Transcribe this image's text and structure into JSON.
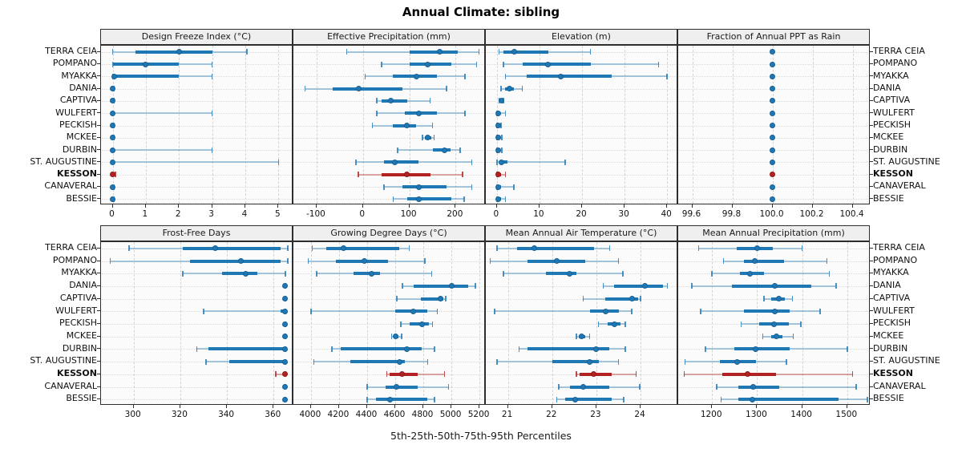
{
  "title": "Annual Climate: sibling",
  "caption": "5th-25th-50th-75th-95th Percentiles",
  "colors": {
    "series": "#1f77b4",
    "series_fade": "rgba(31,119,180,0.38)",
    "series_cap": "rgba(31,119,180,0.8)",
    "highlight": "#b22222",
    "highlight_fade": "rgba(178,34,34,0.38)",
    "highlight_cap": "rgba(178,34,34,0.8)",
    "panel_header_bg": "#efefef",
    "panel_bg": "#fbfbfb",
    "grid": "#d4d4d4",
    "border": "#2e2e2e"
  },
  "chart_data": {
    "type": "percentile-interval-dotplot",
    "percentiles": [
      5,
      25,
      50,
      75,
      95
    ],
    "stations": [
      "TERRA CEIA",
      "POMPANO",
      "MYAKKA",
      "DANIA",
      "CAPTIVA",
      "WULFERT",
      "PECKISH",
      "MCKEE",
      "DURBIN",
      "ST. AUGUSTINE",
      "KESSON",
      "CANAVERAL",
      "BESSIE"
    ],
    "highlight_station": "KESSON",
    "panels": [
      {
        "title": "Design Freeze Index (°C)",
        "grid_row": 0,
        "xlim": [
          -0.35,
          5.45
        ],
        "ticks": [
          0,
          1,
          2,
          3,
          4,
          5
        ],
        "tick_labels": [
          "0",
          "1",
          "2",
          "3",
          "4",
          "5"
        ],
        "values": [
          [
            0,
            0.7,
            2,
            3,
            4.05
          ],
          [
            0,
            0.02,
            1,
            2,
            3
          ],
          [
            0,
            0.02,
            0.05,
            2,
            3
          ],
          [
            0,
            0,
            0,
            0,
            0.05
          ],
          [
            0,
            0,
            0,
            0,
            0.05
          ],
          [
            0,
            0,
            0,
            0,
            3
          ],
          [
            0,
            0,
            0,
            0,
            0.05
          ],
          [
            0,
            0,
            0,
            0,
            0.05
          ],
          [
            0,
            0,
            0,
            0,
            3
          ],
          [
            0,
            0,
            0,
            0,
            5
          ],
          [
            0,
            0,
            0,
            0,
            0.08
          ],
          [
            0,
            0,
            0,
            0,
            0.05
          ],
          [
            0,
            0,
            0,
            0,
            0.05
          ]
        ]
      },
      {
        "title": "Effective Precipitation (mm)",
        "grid_row": 0,
        "xlim": [
          -150,
          265
        ],
        "ticks": [
          -100,
          0,
          100,
          200
        ],
        "tick_labels": [
          "-100",
          "0",
          "100",
          "200"
        ],
        "values": [
          [
            -35,
            100,
            165,
            205,
            250
          ],
          [
            40,
            100,
            140,
            190,
            245
          ],
          [
            5,
            65,
            115,
            160,
            220
          ],
          [
            -125,
            -65,
            -10,
            85,
            180
          ],
          [
            30,
            40,
            60,
            95,
            145
          ],
          [
            30,
            90,
            120,
            160,
            220
          ],
          [
            20,
            65,
            95,
            115,
            150
          ],
          [
            128,
            133,
            140,
            148,
            153
          ],
          [
            75,
            150,
            175,
            188,
            210
          ],
          [
            -15,
            45,
            68,
            120,
            235
          ],
          [
            -10,
            40,
            95,
            145,
            215
          ],
          [
            45,
            85,
            120,
            180,
            235
          ],
          [
            65,
            95,
            120,
            190,
            218
          ]
        ]
      },
      {
        "title": "Elevation (m)",
        "grid_row": 0,
        "xlim": [
          -2.6,
          42.6
        ],
        "ticks": [
          0,
          10,
          20,
          30,
          40
        ],
        "tick_labels": [
          "0",
          "10",
          "20",
          "30",
          "40"
        ],
        "values": [
          [
            0.5,
            1.5,
            4,
            12,
            22
          ],
          [
            1.5,
            6,
            12,
            22,
            38
          ],
          [
            2,
            7,
            15,
            27,
            40
          ],
          [
            1,
            2,
            3,
            4,
            6
          ],
          [
            0.5,
            0.8,
            1,
            1.2,
            1.5
          ],
          [
            0,
            0.1,
            0.3,
            0.8,
            2
          ],
          [
            0,
            0.1,
            0.3,
            0.6,
            1
          ],
          [
            0,
            0.1,
            0.3,
            0.6,
            1.2
          ],
          [
            0,
            0.1,
            0.3,
            0.6,
            1.2
          ],
          [
            0,
            0.5,
            1,
            2.5,
            16
          ],
          [
            0,
            0.1,
            0.3,
            1,
            2
          ],
          [
            0,
            0.1,
            0.3,
            1,
            4
          ],
          [
            0,
            0.1,
            0.3,
            1,
            2
          ]
        ]
      },
      {
        "title": "Fraction of Annual PPT as Rain",
        "grid_row": 0,
        "xlim": [
          99.53,
          100.49
        ],
        "ticks": [
          99.6,
          99.8,
          100.0,
          100.2,
          100.4
        ],
        "tick_labels": [
          "99.6",
          "99.8",
          "100.0",
          "100.2",
          "100.4"
        ],
        "values": [
          [
            100,
            100,
            100,
            100,
            100
          ],
          [
            100,
            100,
            100,
            100,
            100
          ],
          [
            100,
            100,
            100,
            100,
            100
          ],
          [
            100,
            100,
            100,
            100,
            100
          ],
          [
            100,
            100,
            100,
            100,
            100
          ],
          [
            100,
            100,
            100,
            100,
            100
          ],
          [
            100,
            100,
            100,
            100,
            100
          ],
          [
            100,
            100,
            100,
            100,
            100
          ],
          [
            100,
            100,
            100,
            100,
            100
          ],
          [
            100,
            100,
            100,
            100,
            100
          ],
          [
            100,
            100,
            100,
            100,
            100
          ],
          [
            100,
            100,
            100,
            100,
            100
          ],
          [
            100,
            100,
            100,
            100,
            100
          ]
        ]
      },
      {
        "title": "Frost-Free Days",
        "grid_row": 1,
        "xlim": [
          286,
          368.5
        ],
        "ticks": [
          300,
          320,
          340,
          360
        ],
        "tick_labels": [
          "300",
          "320",
          "340",
          "360"
        ],
        "values": [
          [
            298,
            321,
            335,
            363,
            366
          ],
          [
            290,
            324,
            346,
            363,
            366
          ],
          [
            321,
            338,
            348,
            353,
            365
          ],
          [
            365,
            365,
            365,
            365,
            365
          ],
          [
            365,
            365,
            365,
            365,
            365
          ],
          [
            330,
            363,
            365,
            365,
            365
          ],
          [
            365,
            365,
            365,
            365,
            365
          ],
          [
            365,
            365,
            365,
            365,
            365
          ],
          [
            327,
            332,
            365,
            365,
            365
          ],
          [
            331,
            341,
            365,
            365,
            365
          ],
          [
            361,
            364,
            365,
            365,
            365
          ],
          [
            365,
            365,
            365,
            365,
            365
          ],
          [
            365,
            365,
            365,
            365,
            365
          ]
        ]
      },
      {
        "title": "Growing Degree Days (°C)",
        "grid_row": 1,
        "xlim": [
          3875,
          5245
        ],
        "ticks": [
          4000,
          4200,
          4400,
          4600,
          4800,
          5000,
          5200
        ],
        "tick_labels": [
          "4000",
          "4200",
          "4400",
          "4600",
          "4800",
          "5000",
          "5200"
        ],
        "values": [
          [
            4010,
            4110,
            4230,
            4630,
            4700
          ],
          [
            3980,
            4180,
            4380,
            4550,
            4810
          ],
          [
            4040,
            4300,
            4430,
            4490,
            4860
          ],
          [
            4650,
            4730,
            5000,
            5120,
            5170
          ],
          [
            4610,
            4780,
            4920,
            4945,
            4960
          ],
          [
            4000,
            4600,
            4730,
            4830,
            4900
          ],
          [
            4640,
            4700,
            4790,
            4840,
            4865
          ],
          [
            4575,
            4590,
            4600,
            4625,
            4645
          ],
          [
            4150,
            4210,
            4680,
            4790,
            4880
          ],
          [
            4020,
            4280,
            4630,
            4670,
            4830
          ],
          [
            4540,
            4560,
            4650,
            4760,
            4950
          ],
          [
            4400,
            4530,
            4610,
            4760,
            4980
          ],
          [
            4400,
            4460,
            4560,
            4830,
            4880
          ]
        ]
      },
      {
        "title": "Mean Annual Air Temperature (°C)",
        "grid_row": 1,
        "xlim": [
          20.5,
          24.85
        ],
        "ticks": [
          21,
          22,
          23,
          24
        ],
        "tick_labels": [
          "21",
          "22",
          "23",
          "24"
        ],
        "values": [
          [
            20.75,
            21.2,
            21.6,
            22.95,
            23.3
          ],
          [
            20.6,
            21.45,
            22.1,
            22.75,
            23.5
          ],
          [
            20.9,
            21.85,
            22.4,
            22.55,
            23.6
          ],
          [
            23.15,
            23.4,
            24.1,
            24.5,
            24.6
          ],
          [
            22.7,
            23.2,
            23.8,
            23.95,
            24.0
          ],
          [
            20.7,
            22.85,
            23.2,
            23.5,
            23.8
          ],
          [
            23.05,
            23.25,
            23.4,
            23.55,
            23.65
          ],
          [
            22.55,
            22.6,
            22.67,
            22.75,
            22.85
          ],
          [
            21.25,
            21.45,
            23.0,
            23.3,
            23.65
          ],
          [
            20.75,
            22.0,
            22.85,
            23.05,
            23.5
          ],
          [
            22.55,
            22.62,
            22.93,
            23.35,
            23.9
          ],
          [
            22.15,
            22.4,
            22.7,
            23.3,
            23.98
          ],
          [
            22.1,
            22.3,
            22.52,
            23.35,
            23.62
          ]
        ]
      },
      {
        "title": "Mean Annual Precipitation (mm)",
        "grid_row": 1,
        "xlim": [
          1125,
          1552
        ],
        "ticks": [
          1200,
          1300,
          1400,
          1500
        ],
        "tick_labels": [
          "1200",
          "1300",
          "1400",
          "1500"
        ],
        "values": [
          [
            1170,
            1255,
            1300,
            1335,
            1400
          ],
          [
            1225,
            1270,
            1295,
            1360,
            1455
          ],
          [
            1200,
            1262,
            1285,
            1315,
            1460
          ],
          [
            1155,
            1245,
            1340,
            1420,
            1475
          ],
          [
            1315,
            1332,
            1348,
            1362,
            1378
          ],
          [
            1175,
            1270,
            1340,
            1372,
            1440
          ],
          [
            1265,
            1305,
            1337,
            1370,
            1397
          ],
          [
            1313,
            1331,
            1342,
            1356,
            1380
          ],
          [
            1185,
            1250,
            1297,
            1372,
            1500
          ],
          [
            1140,
            1218,
            1255,
            1297,
            1365
          ],
          [
            1138,
            1222,
            1278,
            1342,
            1512
          ],
          [
            1210,
            1258,
            1292,
            1350,
            1520
          ],
          [
            1220,
            1258,
            1290,
            1480,
            1545
          ]
        ]
      }
    ]
  }
}
